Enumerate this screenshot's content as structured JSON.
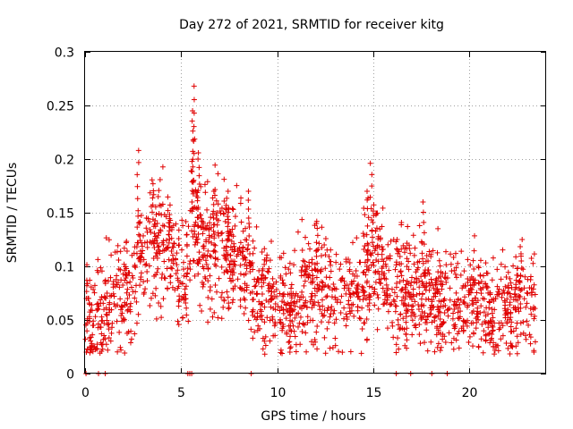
{
  "chart_data": {
    "type": "scatter",
    "title": "Day 272 of 2021, SRMTID for receiver kitg",
    "xlabel": "GPS time / hours",
    "ylabel": "SRMTID / TECUs",
    "xlim": [
      0,
      24
    ],
    "ylim": [
      0,
      0.3
    ],
    "x_ticks": [
      0,
      5,
      10,
      15,
      20
    ],
    "x_tick_labels": [
      "0",
      "5",
      "10",
      "15",
      "20"
    ],
    "y_ticks": [
      0,
      0.05,
      0.1,
      0.15,
      0.2,
      0.25,
      0.3
    ],
    "y_tick_labels": [
      "0",
      "0.05",
      "0.1",
      "0.15",
      "0.2",
      "0.25",
      "0.3"
    ],
    "grid": true,
    "marker": "plus",
    "color": "#e00000",
    "series": [
      {
        "name": "SRMTID",
        "trend": {
          "x": [
            0.0,
            0.2,
            0.5,
            0.9,
            1.3,
            1.8,
            2.3,
            2.8,
            3.3,
            3.8,
            4.3,
            4.8,
            5.2,
            5.6,
            5.9,
            6.3,
            6.8,
            7.3,
            7.8,
            8.3,
            8.8,
            9.3,
            9.8,
            10.3,
            10.8,
            11.3,
            11.8,
            12.3,
            12.8,
            13.3,
            13.8,
            14.3,
            14.8,
            15.2,
            15.7,
            16.2,
            16.7,
            17.2,
            17.7,
            18.2,
            18.7,
            19.2,
            19.7,
            20.2,
            20.7,
            21.2,
            21.7,
            22.2,
            22.7,
            23.2,
            23.5
          ],
          "y": [
            0.05,
            0.05,
            0.045,
            0.06,
            0.065,
            0.07,
            0.08,
            0.11,
            0.12,
            0.115,
            0.12,
            0.1,
            0.085,
            0.16,
            0.13,
            0.11,
            0.115,
            0.11,
            0.115,
            0.1,
            0.09,
            0.075,
            0.07,
            0.06,
            0.065,
            0.075,
            0.08,
            0.085,
            0.07,
            0.065,
            0.075,
            0.085,
            0.1,
            0.105,
            0.085,
            0.075,
            0.075,
            0.07,
            0.075,
            0.07,
            0.07,
            0.065,
            0.065,
            0.07,
            0.065,
            0.06,
            0.065,
            0.06,
            0.065,
            0.07,
            0.065
          ]
        },
        "peaks": [
          {
            "x": 2.75,
            "y": 0.208
          },
          {
            "x": 3.55,
            "y": 0.177
          },
          {
            "x": 4.35,
            "y": 0.152
          },
          {
            "x": 5.65,
            "y": 0.268
          },
          {
            "x": 5.6,
            "y": 0.245
          },
          {
            "x": 5.9,
            "y": 0.2
          },
          {
            "x": 6.7,
            "y": 0.17
          },
          {
            "x": 7.4,
            "y": 0.17
          },
          {
            "x": 8.55,
            "y": 0.17
          },
          {
            "x": 14.9,
            "y": 0.196
          },
          {
            "x": 14.7,
            "y": 0.17
          },
          {
            "x": 17.6,
            "y": 0.16
          },
          {
            "x": 12.1,
            "y": 0.142
          },
          {
            "x": 22.7,
            "y": 0.125
          },
          {
            "x": 10.7,
            "y": 0.02
          },
          {
            "x": 16.7,
            "y": 0.026
          },
          {
            "x": 21.2,
            "y": 0.025
          }
        ],
        "zeros": [
          0.05,
          0.7,
          1.05,
          5.35,
          5.45,
          5.55,
          8.65,
          16.2,
          16.95,
          18.05,
          18.85
        ]
      }
    ]
  }
}
